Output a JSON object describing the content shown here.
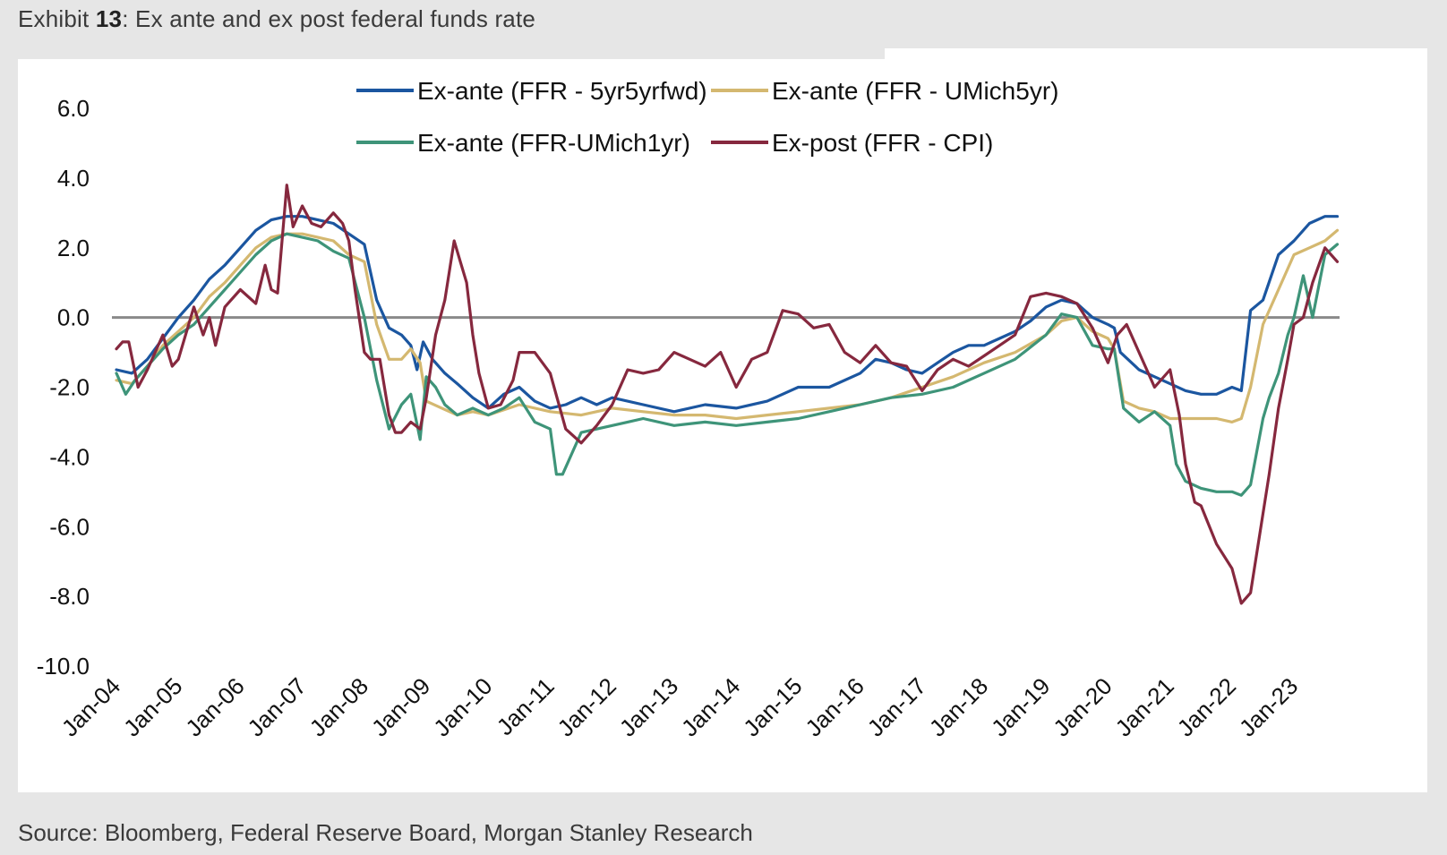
{
  "exhibit": {
    "prefix": "Exhibit ",
    "number": "13",
    "title": ": Ex ante and ex post federal funds rate"
  },
  "source": "Source: Bloomberg, Federal Reserve Board, Morgan Stanley Research",
  "chart_data": {
    "type": "line",
    "title": "Ex ante and ex post federal funds rate",
    "xlabel": "",
    "ylabel": "",
    "ylim": [
      -10.0,
      6.0
    ],
    "xlim": [
      2004.0,
      2023.75
    ],
    "yticks": [
      "6.0",
      "4.0",
      "2.0",
      "0.0",
      "-2.0",
      "-4.0",
      "-6.0",
      "-8.0",
      "-10.0"
    ],
    "ytick_values": [
      6,
      4,
      2,
      0,
      -2,
      -4,
      -6,
      -8,
      -10
    ],
    "xticks": [
      "Jan-04",
      "Jan-05",
      "Jan-06",
      "Jan-07",
      "Jan-08",
      "Jan-09",
      "Jan-10",
      "Jan-11",
      "Jan-12",
      "Jan-13",
      "Jan-14",
      "Jan-15",
      "Jan-16",
      "Jan-17",
      "Jan-18",
      "Jan-19",
      "Jan-20",
      "Jan-21",
      "Jan-22",
      "Jan-23"
    ],
    "xtick_values": [
      2004,
      2005,
      2006,
      2007,
      2008,
      2009,
      2010,
      2011,
      2012,
      2013,
      2014,
      2015,
      2016,
      2017,
      2018,
      2019,
      2020,
      2021,
      2022,
      2023
    ],
    "zero_line": 0,
    "legend": "top-center",
    "series": [
      {
        "name": "Ex-ante (FFR - 5yr5yrfwd)",
        "color": "#1b56a0",
        "x": [
          2004.0,
          2004.25,
          2004.5,
          2004.75,
          2005.0,
          2005.25,
          2005.5,
          2005.75,
          2006.0,
          2006.25,
          2006.5,
          2006.75,
          2007.0,
          2007.25,
          2007.5,
          2007.75,
          2008.0,
          2008.2,
          2008.4,
          2008.6,
          2008.75,
          2008.85,
          2008.95,
          2009.1,
          2009.3,
          2009.5,
          2009.75,
          2010.0,
          2010.25,
          2010.5,
          2010.75,
          2011.0,
          2011.25,
          2011.5,
          2011.75,
          2012.0,
          2012.5,
          2013.0,
          2013.5,
          2014.0,
          2014.5,
          2015.0,
          2015.5,
          2016.0,
          2016.25,
          2016.5,
          2016.75,
          2017.0,
          2017.25,
          2017.5,
          2017.75,
          2018.0,
          2018.25,
          2018.5,
          2018.75,
          2019.0,
          2019.25,
          2019.5,
          2019.75,
          2020.0,
          2020.1,
          2020.2,
          2020.5,
          2020.75,
          2021.0,
          2021.25,
          2021.5,
          2021.75,
          2022.0,
          2022.15,
          2022.3,
          2022.5,
          2022.75,
          2023.0,
          2023.25,
          2023.5,
          2023.7
        ],
        "values": [
          -1.5,
          -1.6,
          -1.2,
          -0.6,
          0.0,
          0.5,
          1.1,
          1.5,
          2.0,
          2.5,
          2.8,
          2.9,
          2.9,
          2.8,
          2.7,
          2.4,
          2.1,
          0.5,
          -0.3,
          -0.5,
          -0.8,
          -1.5,
          -0.7,
          -1.2,
          -1.6,
          -1.9,
          -2.3,
          -2.6,
          -2.2,
          -2.0,
          -2.4,
          -2.6,
          -2.5,
          -2.3,
          -2.5,
          -2.3,
          -2.5,
          -2.7,
          -2.5,
          -2.6,
          -2.4,
          -2.0,
          -2.0,
          -1.6,
          -1.2,
          -1.3,
          -1.5,
          -1.6,
          -1.3,
          -1.0,
          -0.8,
          -0.8,
          -0.6,
          -0.4,
          -0.1,
          0.3,
          0.5,
          0.4,
          0.0,
          -0.2,
          -0.3,
          -1.0,
          -1.5,
          -1.7,
          -1.9,
          -2.1,
          -2.2,
          -2.2,
          -2.0,
          -2.1,
          0.2,
          0.5,
          1.8,
          2.2,
          2.7,
          2.9,
          2.9
        ]
      },
      {
        "name": "Ex-ante (FFR - UMich5yr)",
        "color": "#d4b870",
        "x": [
          2004.0,
          2004.25,
          2004.5,
          2004.75,
          2005.0,
          2005.25,
          2005.5,
          2005.75,
          2006.0,
          2006.25,
          2006.5,
          2006.75,
          2007.0,
          2007.25,
          2007.5,
          2007.75,
          2008.0,
          2008.2,
          2008.4,
          2008.6,
          2008.75,
          2008.9,
          2009.0,
          2009.25,
          2009.5,
          2009.75,
          2010.0,
          2010.5,
          2011.0,
          2011.5,
          2012.0,
          2012.5,
          2013.0,
          2013.5,
          2014.0,
          2014.5,
          2015.0,
          2015.5,
          2016.0,
          2016.5,
          2017.0,
          2017.5,
          2018.0,
          2018.5,
          2019.0,
          2019.25,
          2019.5,
          2019.75,
          2020.0,
          2020.1,
          2020.25,
          2020.5,
          2020.75,
          2021.0,
          2021.25,
          2021.5,
          2021.75,
          2022.0,
          2022.15,
          2022.3,
          2022.5,
          2022.75,
          2023.0,
          2023.25,
          2023.5,
          2023.7
        ],
        "values": [
          -1.8,
          -1.9,
          -1.4,
          -0.8,
          -0.4,
          0.0,
          0.6,
          1.0,
          1.5,
          2.0,
          2.3,
          2.4,
          2.4,
          2.3,
          2.2,
          1.8,
          1.6,
          -0.2,
          -1.2,
          -1.2,
          -0.9,
          -1.3,
          -2.4,
          -2.6,
          -2.8,
          -2.7,
          -2.8,
          -2.5,
          -2.7,
          -2.8,
          -2.6,
          -2.7,
          -2.8,
          -2.8,
          -2.9,
          -2.8,
          -2.7,
          -2.6,
          -2.5,
          -2.3,
          -2.0,
          -1.7,
          -1.3,
          -1.0,
          -0.5,
          -0.1,
          0.0,
          -0.4,
          -0.6,
          -0.9,
          -2.4,
          -2.6,
          -2.7,
          -2.9,
          -2.9,
          -2.9,
          -2.9,
          -3.0,
          -2.9,
          -2.0,
          -0.2,
          0.8,
          1.8,
          2.0,
          2.2,
          2.5
        ]
      },
      {
        "name": "Ex-ante (FFR-UMich1yr)",
        "color": "#3e9479",
        "x": [
          2004.0,
          2004.15,
          2004.3,
          2004.5,
          2004.75,
          2005.0,
          2005.25,
          2005.5,
          2005.75,
          2006.0,
          2006.25,
          2006.5,
          2006.75,
          2007.0,
          2007.25,
          2007.5,
          2007.75,
          2008.0,
          2008.2,
          2008.4,
          2008.6,
          2008.75,
          2008.9,
          2009.0,
          2009.15,
          2009.3,
          2009.5,
          2009.75,
          2010.0,
          2010.25,
          2010.5,
          2010.75,
          2011.0,
          2011.1,
          2011.2,
          2011.5,
          2011.75,
          2012.0,
          2012.25,
          2012.5,
          2013.0,
          2013.5,
          2014.0,
          2014.5,
          2015.0,
          2015.5,
          2016.0,
          2016.5,
          2017.0,
          2017.5,
          2018.0,
          2018.5,
          2019.0,
          2019.25,
          2019.5,
          2019.75,
          2020.0,
          2020.1,
          2020.25,
          2020.5,
          2020.75,
          2021.0,
          2021.1,
          2021.25,
          2021.5,
          2021.75,
          2022.0,
          2022.15,
          2022.3,
          2022.5,
          2022.6,
          2022.75,
          2022.9,
          2023.0,
          2023.15,
          2023.3,
          2023.5,
          2023.7
        ],
        "values": [
          -1.6,
          -2.2,
          -1.8,
          -1.4,
          -0.9,
          -0.5,
          -0.2,
          0.3,
          0.8,
          1.3,
          1.8,
          2.2,
          2.4,
          2.3,
          2.2,
          1.9,
          1.7,
          0.0,
          -1.8,
          -3.2,
          -2.5,
          -2.2,
          -3.5,
          -1.7,
          -2.0,
          -2.5,
          -2.8,
          -2.6,
          -2.8,
          -2.6,
          -2.3,
          -3.0,
          -3.2,
          -4.5,
          -4.5,
          -3.3,
          -3.2,
          -3.1,
          -3.0,
          -2.9,
          -3.1,
          -3.0,
          -3.1,
          -3.0,
          -2.9,
          -2.7,
          -2.5,
          -2.3,
          -2.2,
          -2.0,
          -1.6,
          -1.2,
          -0.5,
          0.1,
          0.0,
          -0.8,
          -0.9,
          -0.9,
          -2.6,
          -3.0,
          -2.7,
          -3.1,
          -4.2,
          -4.7,
          -4.9,
          -5.0,
          -5.0,
          -5.1,
          -4.8,
          -2.9,
          -2.3,
          -1.6,
          -0.5,
          0.0,
          1.2,
          0.0,
          1.8,
          2.1
        ]
      },
      {
        "name": "Ex-post (FFR - CPI)",
        "color": "#86283e",
        "x": [
          2004.0,
          2004.1,
          2004.2,
          2004.35,
          2004.5,
          2004.75,
          2004.9,
          2005.0,
          2005.1,
          2005.25,
          2005.4,
          2005.5,
          2005.6,
          2005.75,
          2006.0,
          2006.25,
          2006.4,
          2006.5,
          2006.6,
          2006.75,
          2006.85,
          2007.0,
          2007.15,
          2007.3,
          2007.5,
          2007.65,
          2007.75,
          2007.85,
          2008.0,
          2008.1,
          2008.25,
          2008.4,
          2008.5,
          2008.6,
          2008.75,
          2008.9,
          2009.0,
          2009.15,
          2009.3,
          2009.45,
          2009.55,
          2009.65,
          2009.75,
          2009.85,
          2010.0,
          2010.2,
          2010.4,
          2010.5,
          2010.75,
          2011.0,
          2011.25,
          2011.5,
          2011.75,
          2012.0,
          2012.25,
          2012.5,
          2012.75,
          2013.0,
          2013.25,
          2013.5,
          2013.75,
          2014.0,
          2014.25,
          2014.5,
          2014.75,
          2015.0,
          2015.25,
          2015.5,
          2015.75,
          2016.0,
          2016.25,
          2016.5,
          2016.75,
          2017.0,
          2017.25,
          2017.5,
          2017.75,
          2018.0,
          2018.25,
          2018.5,
          2018.75,
          2019.0,
          2019.25,
          2019.5,
          2019.75,
          2020.0,
          2020.15,
          2020.3,
          2020.5,
          2020.75,
          2021.0,
          2021.15,
          2021.25,
          2021.4,
          2021.5,
          2021.75,
          2022.0,
          2022.15,
          2022.3,
          2022.45,
          2022.6,
          2022.75,
          2022.9,
          2023.0,
          2023.15,
          2023.3,
          2023.5,
          2023.7
        ],
        "values": [
          -0.9,
          -0.7,
          -0.7,
          -2.0,
          -1.5,
          -0.5,
          -1.4,
          -1.2,
          -0.6,
          0.3,
          -0.5,
          0.0,
          -0.8,
          0.3,
          0.8,
          0.4,
          1.5,
          0.8,
          0.7,
          3.8,
          2.6,
          3.2,
          2.7,
          2.6,
          3.0,
          2.7,
          2.2,
          0.8,
          -1.0,
          -1.2,
          -1.2,
          -2.8,
          -3.3,
          -3.3,
          -3.0,
          -3.2,
          -2.3,
          -0.5,
          0.5,
          2.2,
          1.6,
          1.0,
          -0.5,
          -1.6,
          -2.6,
          -2.5,
          -1.8,
          -1.0,
          -1.0,
          -1.6,
          -3.2,
          -3.6,
          -3.1,
          -2.5,
          -1.5,
          -1.6,
          -1.5,
          -1.0,
          -1.2,
          -1.4,
          -1.0,
          -2.0,
          -1.2,
          -1.0,
          0.2,
          0.1,
          -0.3,
          -0.2,
          -1.0,
          -1.3,
          -0.8,
          -1.3,
          -1.4,
          -2.1,
          -1.5,
          -1.2,
          -1.4,
          -1.1,
          -0.8,
          -0.5,
          0.6,
          0.7,
          0.6,
          0.4,
          -0.3,
          -1.3,
          -0.5,
          -0.2,
          -1.0,
          -2.0,
          -1.5,
          -2.8,
          -4.2,
          -5.3,
          -5.4,
          -6.5,
          -7.2,
          -8.2,
          -7.9,
          -6.2,
          -4.5,
          -2.6,
          -1.2,
          -0.2,
          0.0,
          1.0,
          2.0,
          1.6
        ]
      }
    ]
  }
}
